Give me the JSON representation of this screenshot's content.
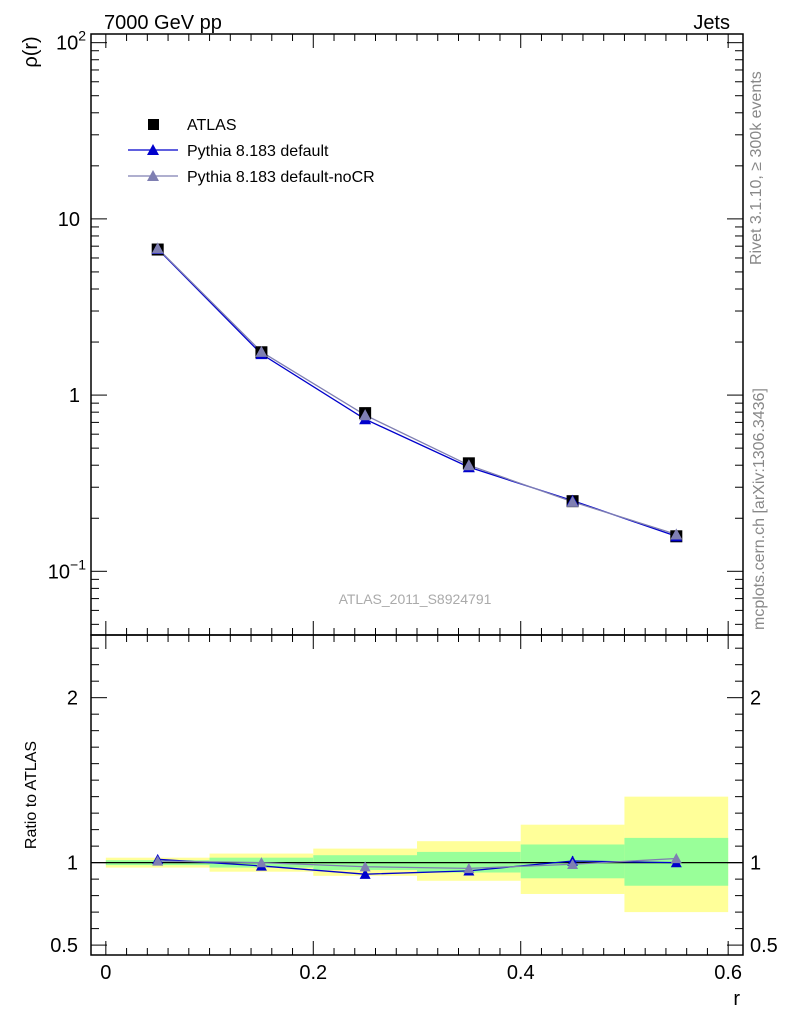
{
  "header": {
    "left": "7000 GeV pp",
    "right": "Jets"
  },
  "side_text": {
    "rivet": "Rivet 3.1.10, ≥ 300k events",
    "source": "mcplots.cern.ch [arXiv:1306.3436]"
  },
  "watermark": "ATLAS_2011_S8924791",
  "colors": {
    "data": "#000000",
    "pythia_default": "#0000cc",
    "pythia_nocr": "#7f7fb2",
    "band_inner": "#99ff99",
    "band_outer": "#ffff99"
  },
  "chart_data": {
    "type": "line",
    "x_label": "r",
    "x_ticks": [
      "0",
      "0.2",
      "0.4",
      "0.6"
    ],
    "x_range": [
      -0.0143,
      0.6143
    ],
    "main": {
      "y_label": "ρ(r)",
      "y_scale": "log",
      "y_range": [
        0.0435,
        112
      ],
      "y_ticks": [
        {
          "value": 0.1,
          "base": "10",
          "exp": "−1"
        },
        {
          "value": 1,
          "base": "1",
          "exp": ""
        },
        {
          "value": 10,
          "base": "10",
          "exp": ""
        },
        {
          "value": 100,
          "base": "10",
          "exp": "2"
        }
      ],
      "legend": [
        "ATLAS",
        "Pythia 8.183 default",
        "Pythia 8.183 default-noCR"
      ],
      "legend_position": "top-left"
    },
    "ratio": {
      "y_label": "Ratio to ATLAS",
      "y_range": [
        0.44,
        2.38
      ],
      "y_ticks": [
        {
          "value": 0.5,
          "label": "0.5"
        },
        {
          "value": 1,
          "label": "1"
        },
        {
          "value": 2,
          "label": "2"
        }
      ]
    },
    "bins": [
      {
        "lo": 0.0,
        "hi": 0.1
      },
      {
        "lo": 0.1,
        "hi": 0.2
      },
      {
        "lo": 0.2,
        "hi": 0.3
      },
      {
        "lo": 0.3,
        "hi": 0.4
      },
      {
        "lo": 0.4,
        "hi": 0.5
      },
      {
        "lo": 0.5,
        "hi": 0.6
      }
    ],
    "x": [
      0.05,
      0.15,
      0.25,
      0.35,
      0.45,
      0.55
    ],
    "series": [
      {
        "name": "ATLAS",
        "marker": "square",
        "values": [
          6.7,
          1.75,
          0.79,
          0.41,
          0.25,
          0.158
        ]
      },
      {
        "name": "Pythia 8.183 default",
        "marker": "triangle",
        "values": [
          6.75,
          1.71,
          0.73,
          0.39,
          0.252,
          0.158
        ],
        "ratio": [
          1.02,
          0.98,
          0.93,
          0.95,
          1.01,
          1.0
        ],
        "ratio_err": [
          0.01,
          0.01,
          0.02,
          0.02,
          0.03,
          0.02
        ]
      },
      {
        "name": "Pythia 8.183 default-noCR",
        "marker": "triangle",
        "values": [
          6.8,
          1.76,
          0.77,
          0.4,
          0.248,
          0.162
        ],
        "ratio": [
          1.01,
          1.0,
          0.975,
          0.965,
          0.99,
          1.025
        ],
        "ratio_err": [
          0.01,
          0.01,
          0.01,
          0.01,
          0.01,
          0.01
        ]
      }
    ],
    "uncertainty_bands": {
      "inner": [
        [
          0.985,
          1.015
        ],
        [
          0.97,
          1.03
        ],
        [
          0.955,
          1.045
        ],
        [
          0.94,
          1.065
        ],
        [
          0.905,
          1.11
        ],
        [
          0.86,
          1.15
        ]
      ],
      "outer": [
        [
          0.97,
          1.03
        ],
        [
          0.945,
          1.055
        ],
        [
          0.92,
          1.085
        ],
        [
          0.89,
          1.13
        ],
        [
          0.81,
          1.23
        ],
        [
          0.7,
          1.4
        ]
      ]
    }
  }
}
